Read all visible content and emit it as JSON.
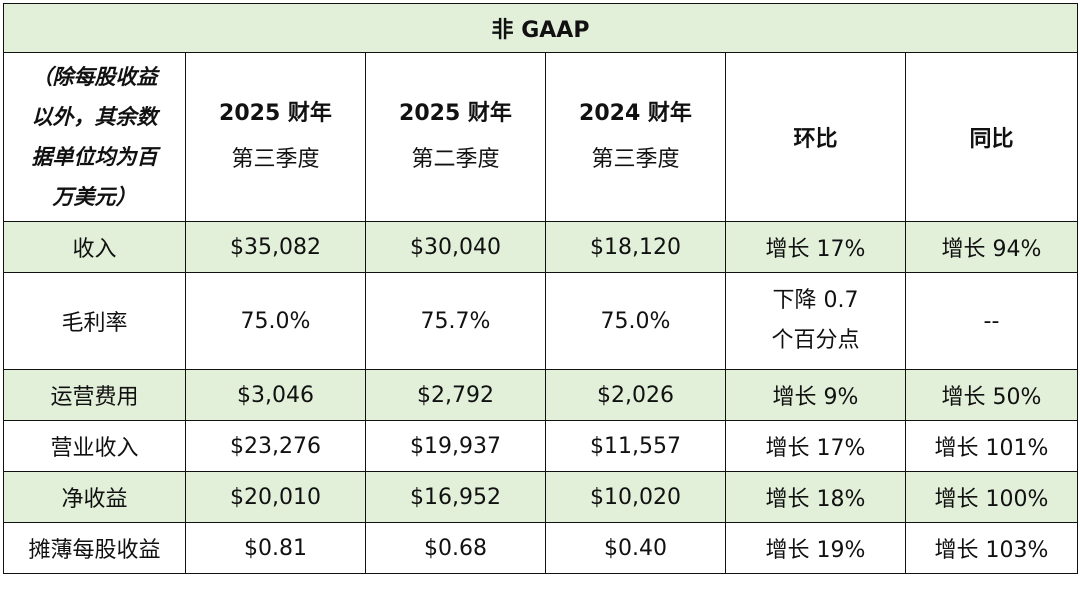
{
  "table": {
    "title": "非 GAAP",
    "note_lines": [
      "（除每股收益",
      "以外，其余数",
      "据单位均为百",
      "万美元）"
    ],
    "columns": [
      {
        "line1": "2025 财年",
        "line2": "第三季度"
      },
      {
        "line1": "2025 财年",
        "line2": "第二季度"
      },
      {
        "line1": "2024 财年",
        "line2": "第三季度"
      },
      {
        "line1": "环比",
        "line2": ""
      },
      {
        "line1": "同比",
        "line2": ""
      }
    ],
    "rows": [
      {
        "label": "收入",
        "c1": "$35,082",
        "c2": "$30,040",
        "c3": "$18,120",
        "qoq": "增长 17%",
        "yoy": "增长 94%"
      },
      {
        "label": "毛利率",
        "c1": "75.0%",
        "c2": "75.7%",
        "c3": "75.0%",
        "qoq_line1": "下降 0.7",
        "qoq_line2": "个百分点",
        "yoy": "--"
      },
      {
        "label": "运营费用",
        "c1": "$3,046",
        "c2": "$2,792",
        "c3": "$2,026",
        "qoq": "增长 9%",
        "yoy": "增长 50%"
      },
      {
        "label": "营业收入",
        "c1": "$23,276",
        "c2": "$19,937",
        "c3": "$11,557",
        "qoq": "增长 17%",
        "yoy": "增长 101%"
      },
      {
        "label": "净收益",
        "c1": "$20,010",
        "c2": "$16,952",
        "c3": "$10,020",
        "qoq": "增长 18%",
        "yoy": "增长 100%"
      },
      {
        "label": "摊薄每股收益",
        "c1": "$0.81",
        "c2": "$0.68",
        "c3": "$0.40",
        "qoq": "增长 19%",
        "yoy": "增长 103%"
      }
    ]
  },
  "colors": {
    "highlight_row": "#e2efd9",
    "border": "#111111"
  }
}
